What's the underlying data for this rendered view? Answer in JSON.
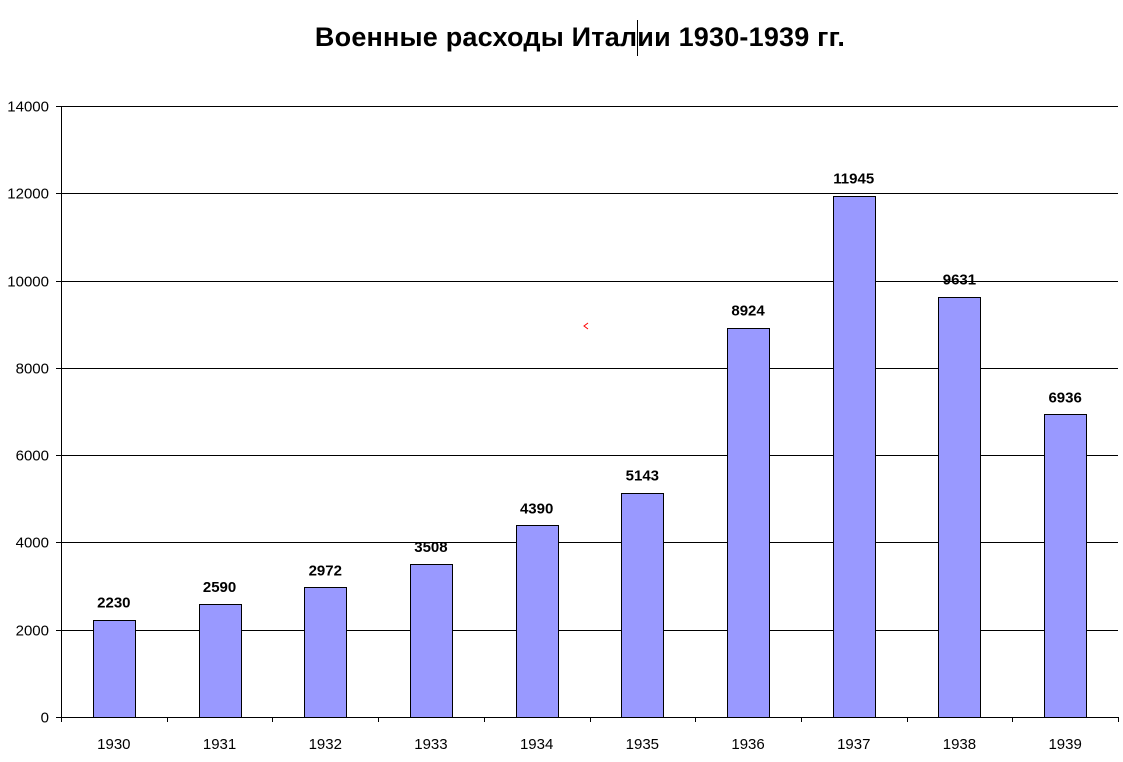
{
  "chart_data": {
    "type": "bar",
    "title": "Военные расходы Италии 1930-1939 гг.",
    "xlabel": "",
    "ylabel": "",
    "categories": [
      "1930",
      "1931",
      "1932",
      "1933",
      "1934",
      "1935",
      "1936",
      "1937",
      "1938",
      "1939"
    ],
    "values": [
      2230,
      2590,
      2972,
      3508,
      4390,
      5143,
      8924,
      11945,
      9631,
      6936
    ],
    "ylim": [
      0,
      14000
    ],
    "yticks": [
      0,
      2000,
      4000,
      6000,
      8000,
      10000,
      12000,
      14000
    ],
    "grid": true,
    "legend": "none",
    "data_labels": true,
    "bar_color": "#9999ff",
    "bar_edge_color": "#000000"
  }
}
